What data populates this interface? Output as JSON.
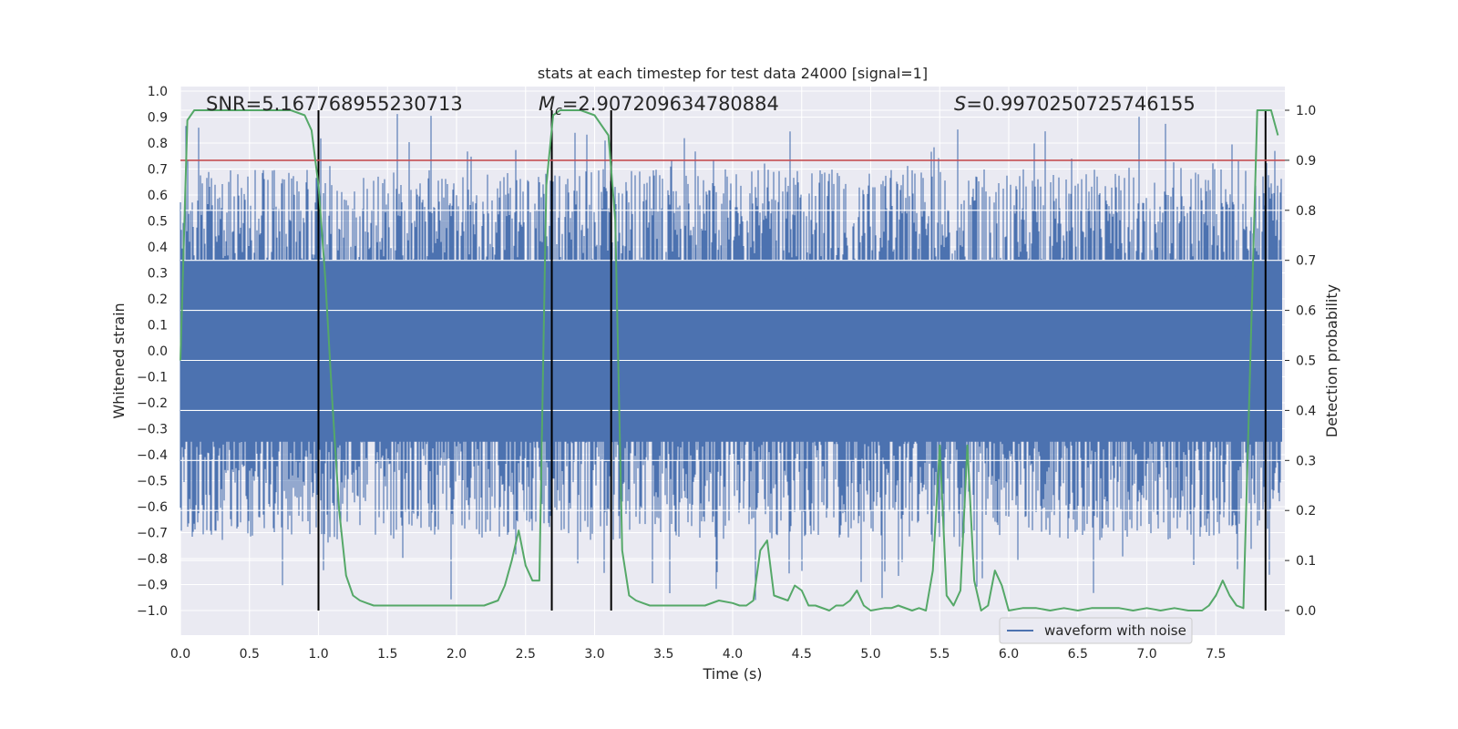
{
  "chart_data": {
    "type": "line",
    "title": "stats at each timestep for test data 24000 [signal=1]",
    "xlabel": "Time (s)",
    "ylabel_left": "Whitened strain",
    "ylabel_right": "Detection probability",
    "xlim": [
      0.0,
      8.0
    ],
    "ylim_left": [
      -1.1,
      1.0
    ],
    "ylim_right": [
      -0.05,
      1.05
    ],
    "grid": true,
    "x_ticks": [
      "0.0",
      "0.5",
      "1.0",
      "1.5",
      "2.0",
      "2.5",
      "3.0",
      "3.5",
      "4.0",
      "4.5",
      "5.0",
      "5.5",
      "6.0",
      "6.5",
      "7.0",
      "7.5"
    ],
    "y_ticks_left": [
      "1.0",
      "0.9",
      "0.8",
      "0.7",
      "0.6",
      "0.5",
      "0.4",
      "0.3",
      "0.2",
      "0.1",
      "0.0",
      "−0.1",
      "−0.2",
      "−0.3",
      "−0.4",
      "−0.5",
      "−0.6",
      "−0.7",
      "−0.8",
      "−0.9",
      "−1.0"
    ],
    "y_ticks_right": [
      "1.0",
      "0.9",
      "0.8",
      "0.7",
      "0.6",
      "0.5",
      "0.4",
      "0.3",
      "0.2",
      "0.1",
      "0.0"
    ],
    "annotations": {
      "snr": "SNR=5.167768955230713",
      "mc_symbol": "M",
      "mc_subscript": "c",
      "mc_value": "=2.907209634780884",
      "s_symbol": "S",
      "s_value": "=0.9970250725746155"
    },
    "legend": {
      "label": "waveform with noise",
      "location": "lower-right"
    },
    "threshold": {
      "value": 0.9,
      "axis": "right",
      "color": "#c44e52"
    },
    "vertical_markers": [
      1.0,
      2.69,
      3.12,
      7.86
    ],
    "waveform": {
      "name": "waveform with noise",
      "color": "#4c72b0",
      "x_start": 0.0,
      "x_end": 7.98,
      "core_band": [
        -0.35,
        0.35
      ],
      "typical_peak_range": [
        0.2,
        0.7
      ],
      "extreme_max": 0.92,
      "extreme_min": -0.97
    },
    "probability": {
      "name": "detection probability",
      "color": "#55a868",
      "x": [
        0.0,
        0.05,
        0.1,
        0.2,
        0.3,
        0.4,
        0.5,
        0.6,
        0.7,
        0.8,
        0.9,
        0.95,
        1.0,
        1.05,
        1.1,
        1.15,
        1.2,
        1.25,
        1.3,
        1.35,
        1.4,
        1.5,
        1.6,
        1.7,
        1.8,
        1.9,
        2.0,
        2.1,
        2.2,
        2.3,
        2.35,
        2.4,
        2.45,
        2.5,
        2.55,
        2.6,
        2.65,
        2.7,
        2.75,
        2.8,
        2.9,
        3.0,
        3.1,
        3.15,
        3.2,
        3.25,
        3.3,
        3.35,
        3.4,
        3.5,
        3.6,
        3.7,
        3.8,
        3.9,
        4.0,
        4.05,
        4.1,
        4.15,
        4.2,
        4.25,
        4.3,
        4.4,
        4.45,
        4.5,
        4.55,
        4.6,
        4.7,
        4.75,
        4.8,
        4.85,
        4.9,
        4.95,
        5.0,
        5.1,
        5.15,
        5.2,
        5.3,
        5.35,
        5.4,
        5.45,
        5.5,
        5.55,
        5.6,
        5.65,
        5.7,
        5.75,
        5.8,
        5.85,
        5.9,
        5.95,
        6.0,
        6.1,
        6.2,
        6.3,
        6.4,
        6.5,
        6.6,
        6.7,
        6.8,
        6.9,
        7.0,
        7.1,
        7.2,
        7.3,
        7.4,
        7.45,
        7.5,
        7.55,
        7.6,
        7.65,
        7.7,
        7.75,
        7.8,
        7.85,
        7.9,
        7.95
      ],
      "values": [
        0.5,
        0.98,
        1.0,
        1.0,
        1.0,
        1.0,
        1.0,
        1.0,
        1.0,
        1.0,
        0.99,
        0.96,
        0.85,
        0.66,
        0.42,
        0.2,
        0.07,
        0.03,
        0.02,
        0.015,
        0.01,
        0.01,
        0.01,
        0.01,
        0.01,
        0.01,
        0.01,
        0.01,
        0.01,
        0.02,
        0.05,
        0.1,
        0.16,
        0.09,
        0.06,
        0.06,
        0.85,
        0.99,
        1.0,
        1.0,
        1.0,
        0.99,
        0.95,
        0.78,
        0.12,
        0.03,
        0.02,
        0.015,
        0.01,
        0.01,
        0.01,
        0.01,
        0.01,
        0.02,
        0.015,
        0.01,
        0.01,
        0.02,
        0.12,
        0.14,
        0.03,
        0.02,
        0.05,
        0.04,
        0.01,
        0.01,
        0.0,
        0.01,
        0.01,
        0.02,
        0.04,
        0.01,
        0.0,
        0.005,
        0.005,
        0.01,
        0.0,
        0.005,
        0.0,
        0.08,
        0.33,
        0.03,
        0.01,
        0.04,
        0.33,
        0.06,
        0.0,
        0.01,
        0.08,
        0.05,
        0.0,
        0.005,
        0.005,
        0.0,
        0.005,
        0.0,
        0.005,
        0.005,
        0.005,
        0.0,
        0.005,
        0.0,
        0.005,
        0.0,
        0.0,
        0.01,
        0.03,
        0.06,
        0.03,
        0.01,
        0.005,
        0.5,
        1.0,
        1.0,
        1.0,
        0.95
      ]
    }
  }
}
